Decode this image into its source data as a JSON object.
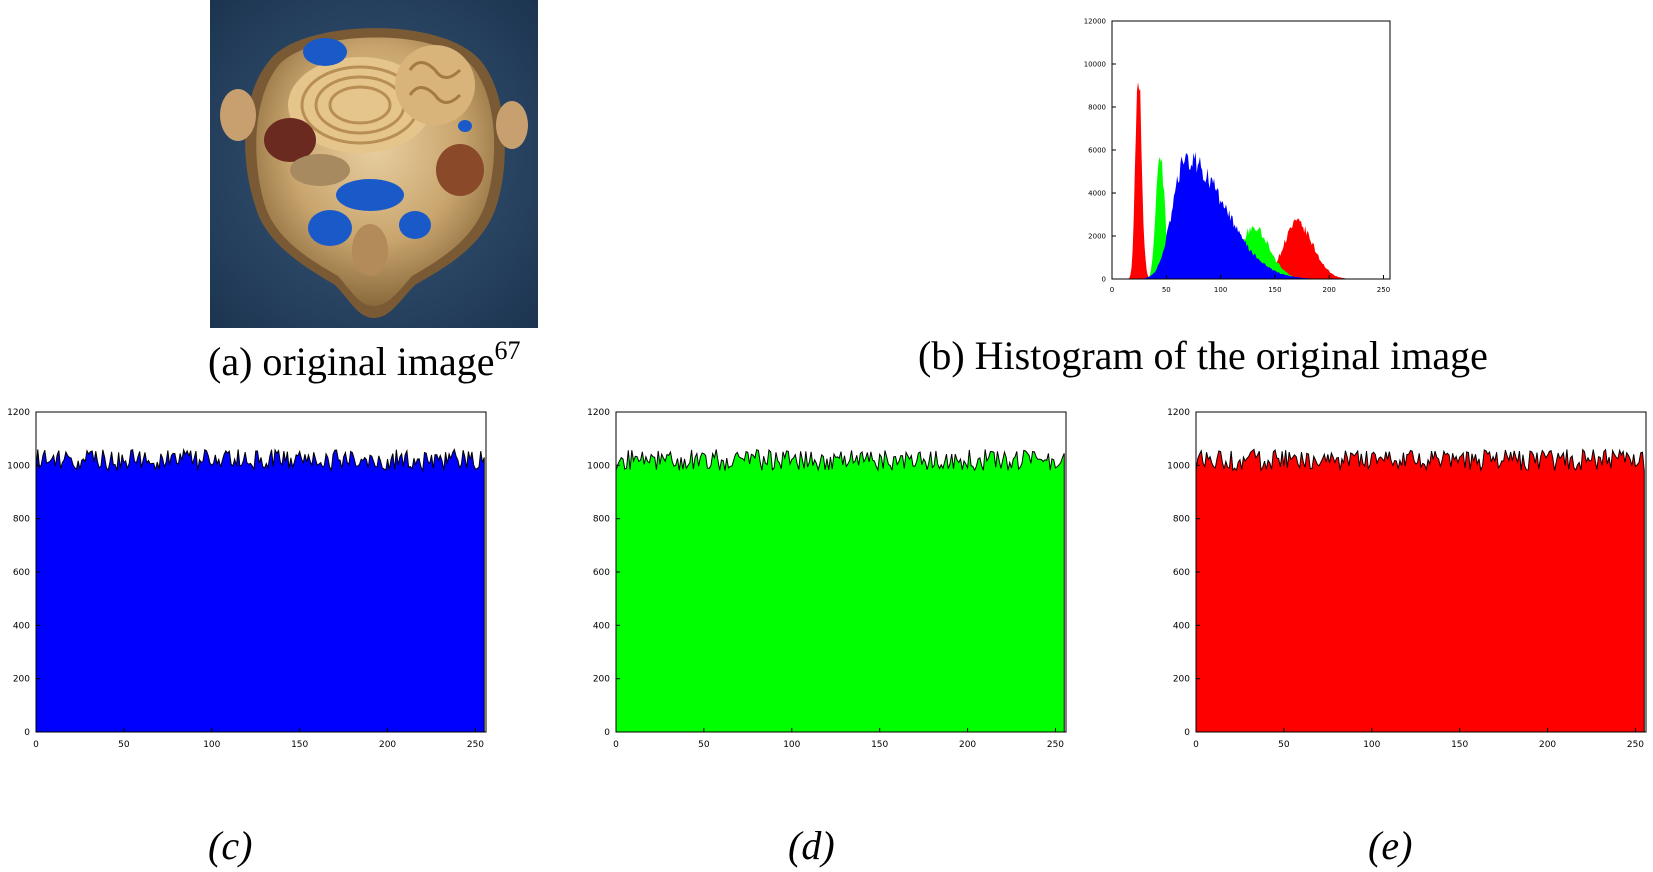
{
  "figure": {
    "photo": {
      "description_icon": "brain-cross-section-photo",
      "caption": "(a) original image",
      "caption_sup": "67"
    },
    "captions": {
      "b": "(b) Histogram of the original image",
      "c": "(c)",
      "d": "(d)",
      "e": "(e)"
    }
  },
  "chart_data": [
    {
      "id": "b",
      "type": "area",
      "title": "",
      "xlabel": "",
      "ylabel": "",
      "xlim": [
        0,
        256
      ],
      "ylim": [
        0,
        12000
      ],
      "xticks": [
        "0",
        "50",
        "100",
        "150",
        "200",
        "250"
      ],
      "yticks": [
        "0",
        "2000",
        "4000",
        "6000",
        "8000",
        "10000",
        "12000"
      ],
      "grid": false,
      "legend": "none",
      "series": [
        {
          "color": "#ff0000",
          "peaks": [
            [
              24,
              10000,
              2.5
            ],
            [
              170,
              2600,
              12
            ]
          ]
        },
        {
          "color": "#00ff00",
          "peaks": [
            [
              44,
              5800,
              3.5
            ],
            [
              130,
              2400,
              12
            ]
          ]
        },
        {
          "color": "#0000ff",
          "peaks": [
            [
              68,
              5600,
              22
            ]
          ]
        }
      ]
    },
    {
      "id": "c",
      "type": "area",
      "xlim": [
        0,
        256
      ],
      "ylim": [
        0,
        1200
      ],
      "xticks": [
        "0",
        "50",
        "100",
        "150",
        "200",
        "250"
      ],
      "yticks": [
        "0",
        "200",
        "400",
        "600",
        "800",
        "1000",
        "1200"
      ],
      "grid": false,
      "legend": "none",
      "series": [
        {
          "color": "#0000ff",
          "mean": 1020,
          "amplitude": 40
        }
      ]
    },
    {
      "id": "d",
      "type": "area",
      "xlim": [
        0,
        256
      ],
      "ylim": [
        0,
        1200
      ],
      "xticks": [
        "0",
        "50",
        "100",
        "150",
        "200",
        "250"
      ],
      "yticks": [
        "0",
        "200",
        "400",
        "600",
        "800",
        "1000",
        "1200"
      ],
      "grid": false,
      "legend": "none",
      "series": [
        {
          "color": "#00ff00",
          "mean": 1020,
          "amplitude": 40
        }
      ]
    },
    {
      "id": "e",
      "type": "area",
      "xlim": [
        0,
        256
      ],
      "ylim": [
        0,
        1200
      ],
      "xticks": [
        "0",
        "50",
        "100",
        "150",
        "200",
        "250"
      ],
      "yticks": [
        "0",
        "200",
        "400",
        "600",
        "800",
        "1000",
        "1200"
      ],
      "grid": false,
      "legend": "none",
      "series": [
        {
          "color": "#ff0000",
          "mean": 1020,
          "amplitude": 40
        }
      ]
    }
  ]
}
